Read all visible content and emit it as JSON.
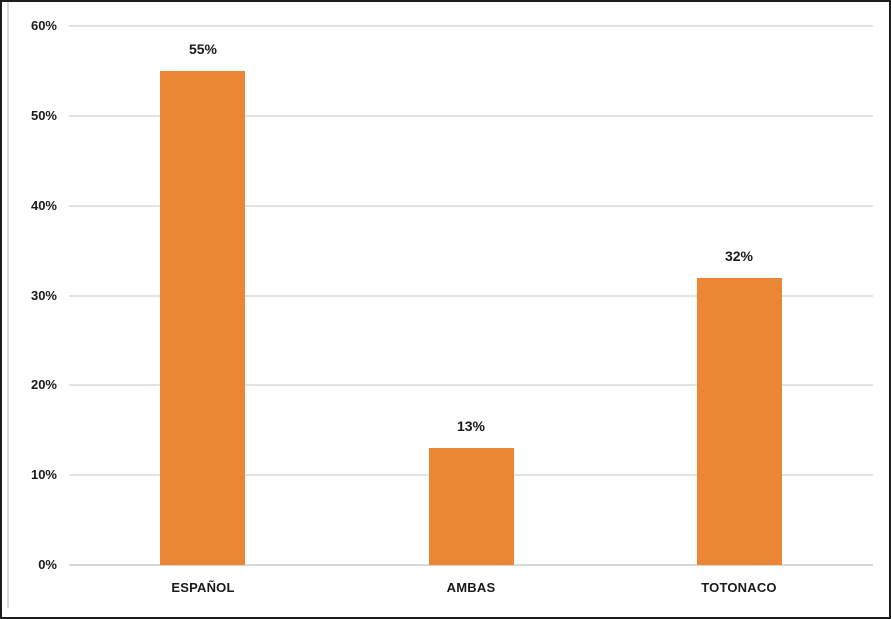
{
  "chart_data": {
    "type": "bar",
    "categories": [
      "ESPAÑOL",
      "AMBAS",
      "TOTONACO"
    ],
    "values": [
      55,
      13,
      32
    ],
    "data_labels": [
      "55%",
      "13%",
      "32%"
    ],
    "title": "",
    "xlabel": "",
    "ylabel": "",
    "ylim": [
      0,
      60
    ],
    "y_ticks": [
      0,
      10,
      20,
      30,
      40,
      50,
      60
    ],
    "y_tick_labels": [
      "0%",
      "10%",
      "20%",
      "30%",
      "40%",
      "50%",
      "60%"
    ],
    "grid": true,
    "legend": false,
    "bar_color": "#EA8634",
    "gridline_color": "#E4E4E4",
    "axis_line_color": "#D7D7D7",
    "text_color": "#1A1A1A",
    "frame_color": "#1C1C1C"
  }
}
